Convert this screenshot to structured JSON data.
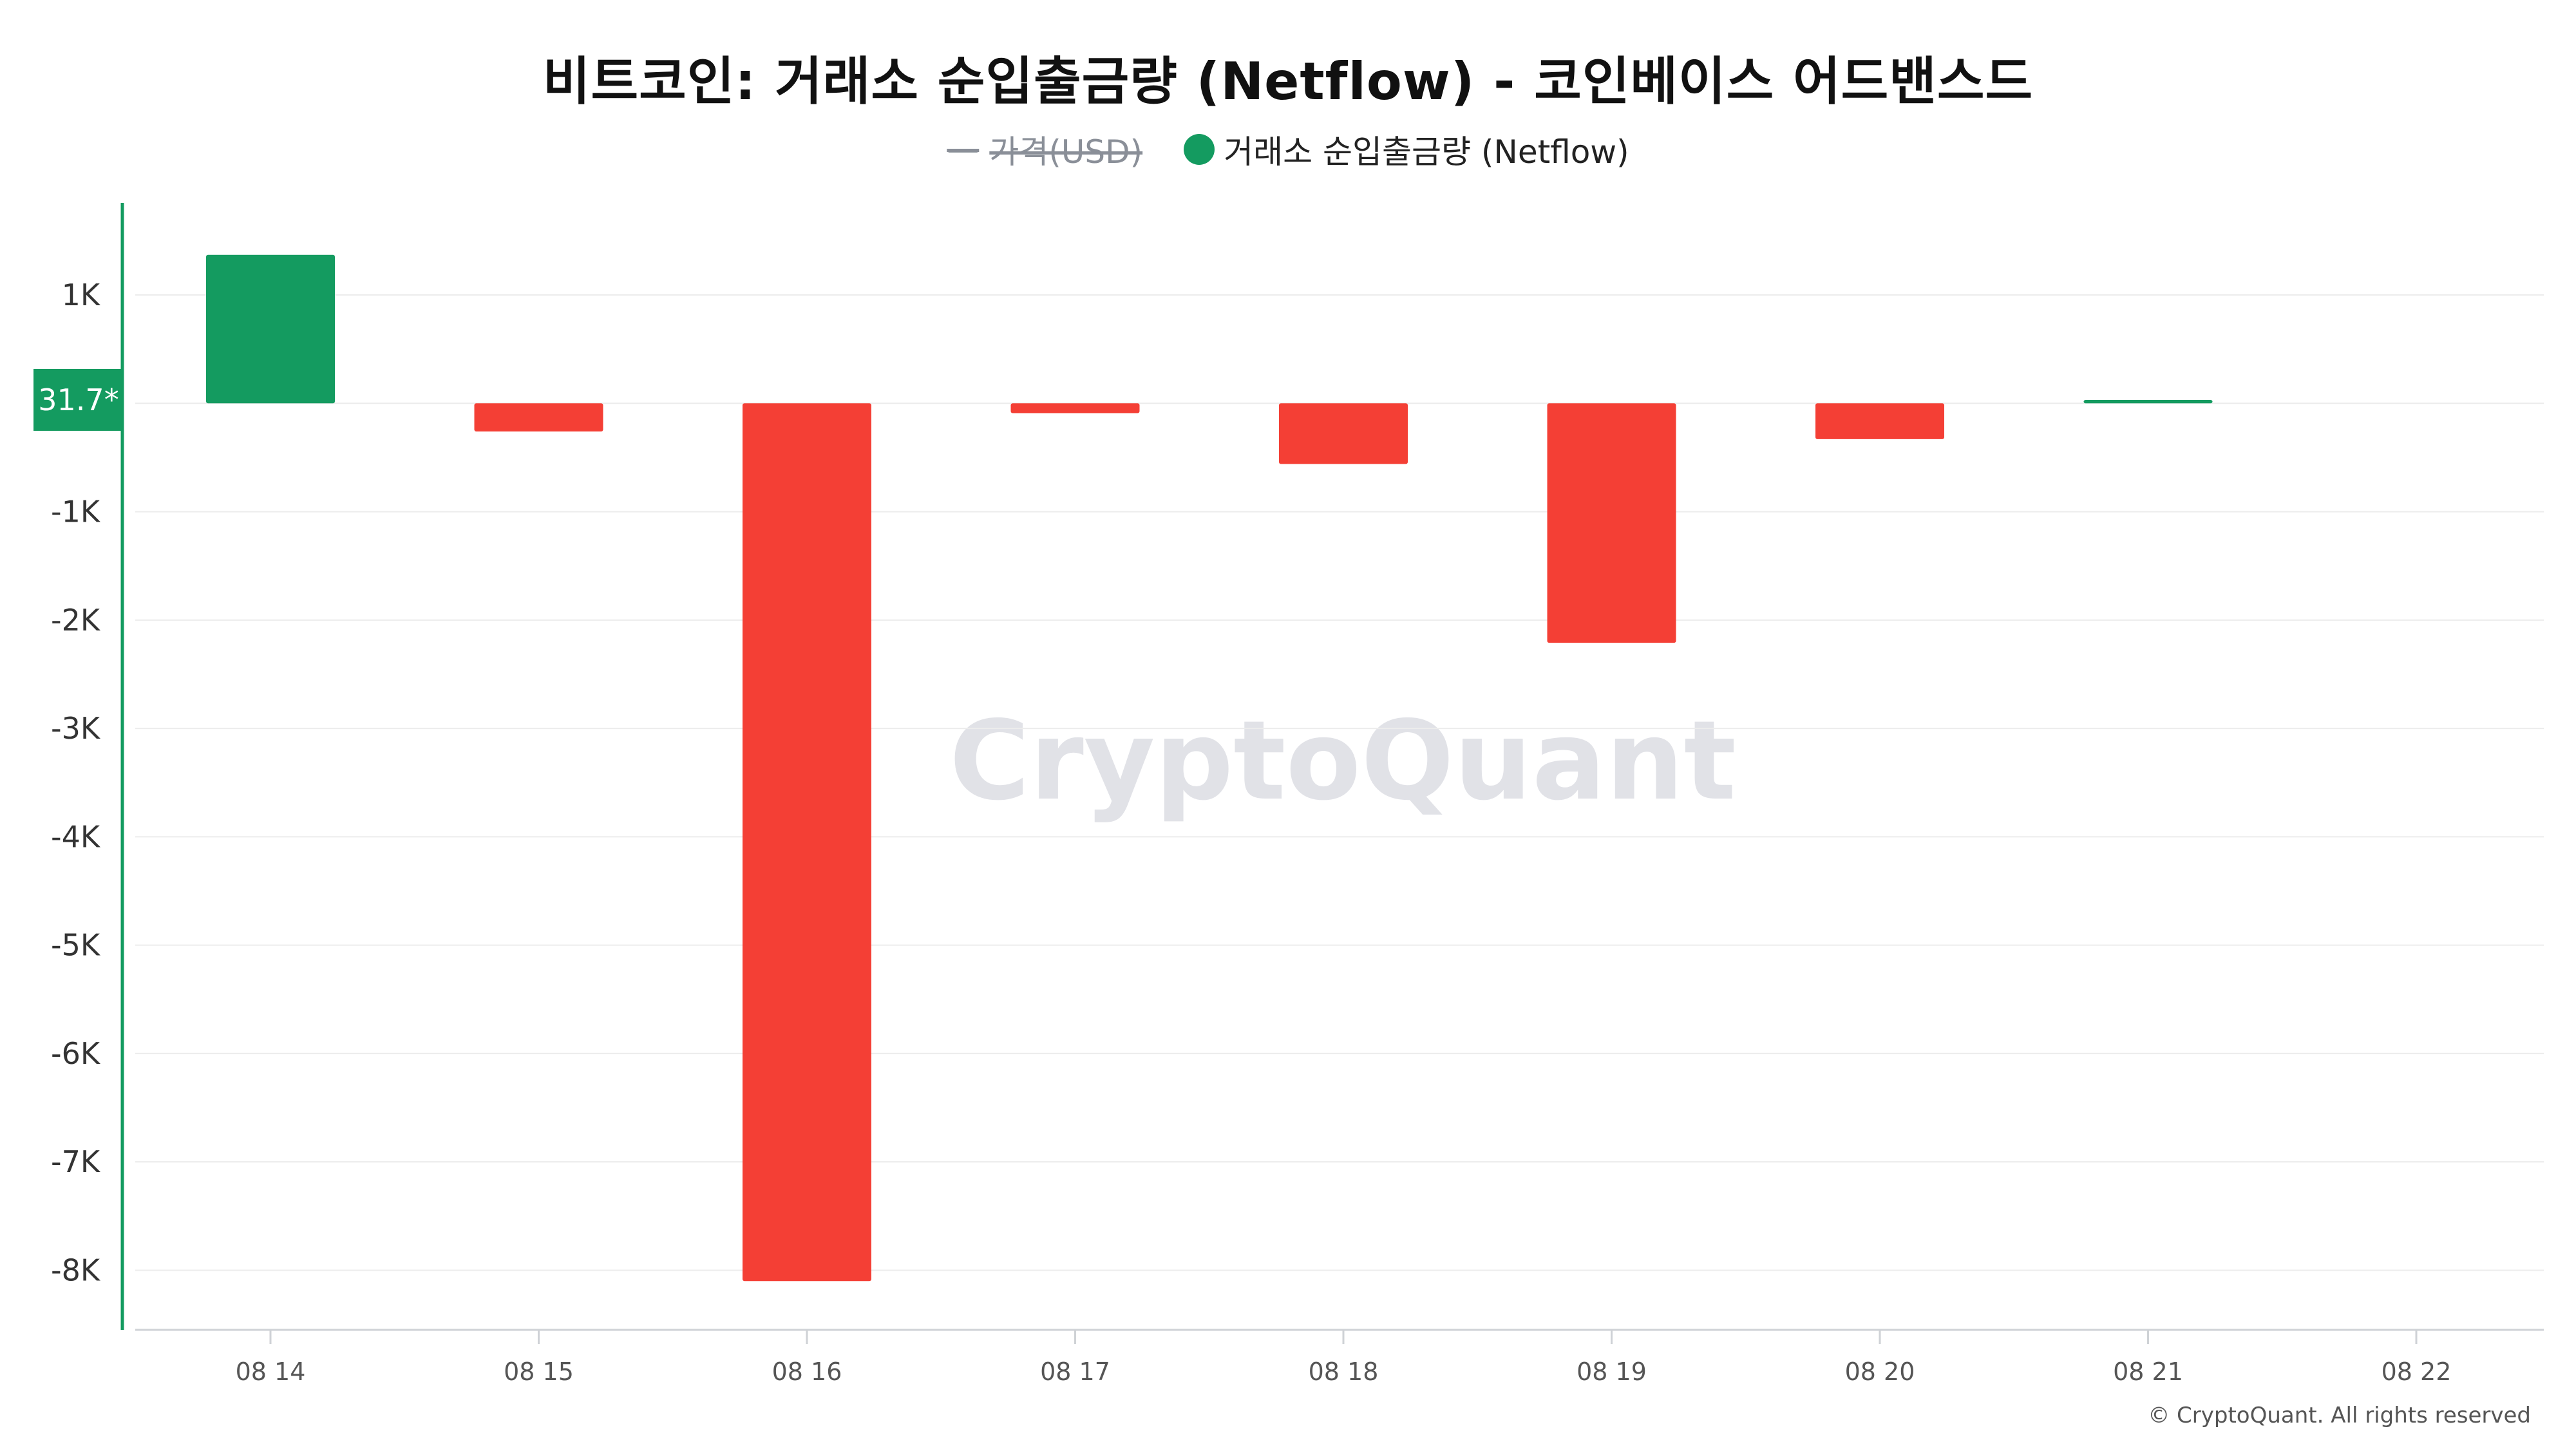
{
  "chart_data": {
    "type": "bar",
    "title": "비트코인: 거래소 순입출금량 (Netflow) - 코인베이스 어드밴스드",
    "legend": [
      {
        "dash": "—",
        "label": "가격(USD)",
        "disabled": true
      },
      {
        "label": "거래소 순입출금량 (Netflow)",
        "color": "#149b60",
        "disabled": false
      }
    ],
    "categories": [
      "08 14",
      "08 15",
      "08 16",
      "08 17",
      "08 18",
      "08 19",
      "08 20",
      "08 21",
      "08 22"
    ],
    "series": [
      {
        "name": "거래소 순입출금량 (Netflow)",
        "values": [
          1370,
          -260,
          -8100,
          -90,
          -560,
          -2210,
          -330,
          31.7,
          null
        ]
      }
    ],
    "positive_color": "#149b60",
    "negative_color": "#f43f35",
    "ylim": [
      -8550,
      1850
    ],
    "yticks": [
      1000,
      -1000,
      -2000,
      -3000,
      -4000,
      -5000,
      -6000,
      -7000,
      -8000
    ],
    "ytick_labels": [
      "1K",
      "-1K",
      "-2K",
      "-3K",
      "-4K",
      "-5K",
      "-6K",
      "-7K",
      "-8K"
    ],
    "current_value_label": "31.7*",
    "current_value": 31.7,
    "grid": true,
    "legend_position": "top-center",
    "xlabel": "",
    "ylabel": ""
  },
  "watermark": "CryptoQuant",
  "copyright": "© CryptoQuant. All rights reserved"
}
